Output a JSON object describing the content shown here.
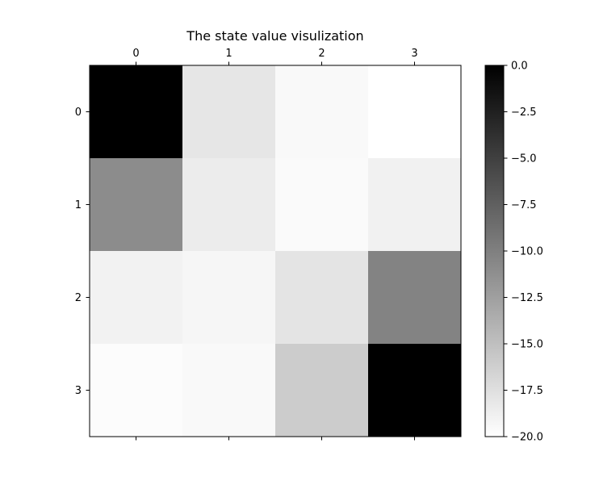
{
  "chart_data": {
    "type": "heatmap",
    "title": "The state value visulization",
    "x_ticks": [
      "0",
      "1",
      "2",
      "3"
    ],
    "y_ticks": [
      "0",
      "1",
      "2",
      "3"
    ],
    "x_axis_position": "top",
    "values": [
      [
        0.0,
        -18.0,
        -19.5,
        -20.0
      ],
      [
        -11.0,
        -18.5,
        -19.6,
        -18.9
      ],
      [
        -19.0,
        -19.3,
        -17.9,
        -10.3
      ],
      [
        -19.8,
        -19.5,
        -16.0,
        0.0
      ]
    ],
    "colormap": "gray",
    "color_min": -20.0,
    "color_max": 0.0,
    "colorbar": {
      "ticks": [
        0.0,
        -2.5,
        -5.0,
        -7.5,
        -10.0,
        -12.5,
        -15.0,
        -17.5,
        -20.0
      ],
      "tick_labels": [
        "0.0",
        "−2.5",
        "−5.0",
        "−7.5",
        "−10.0",
        "−12.5",
        "−15.0",
        "−17.5",
        "−20.0"
      ]
    },
    "grid": false
  }
}
